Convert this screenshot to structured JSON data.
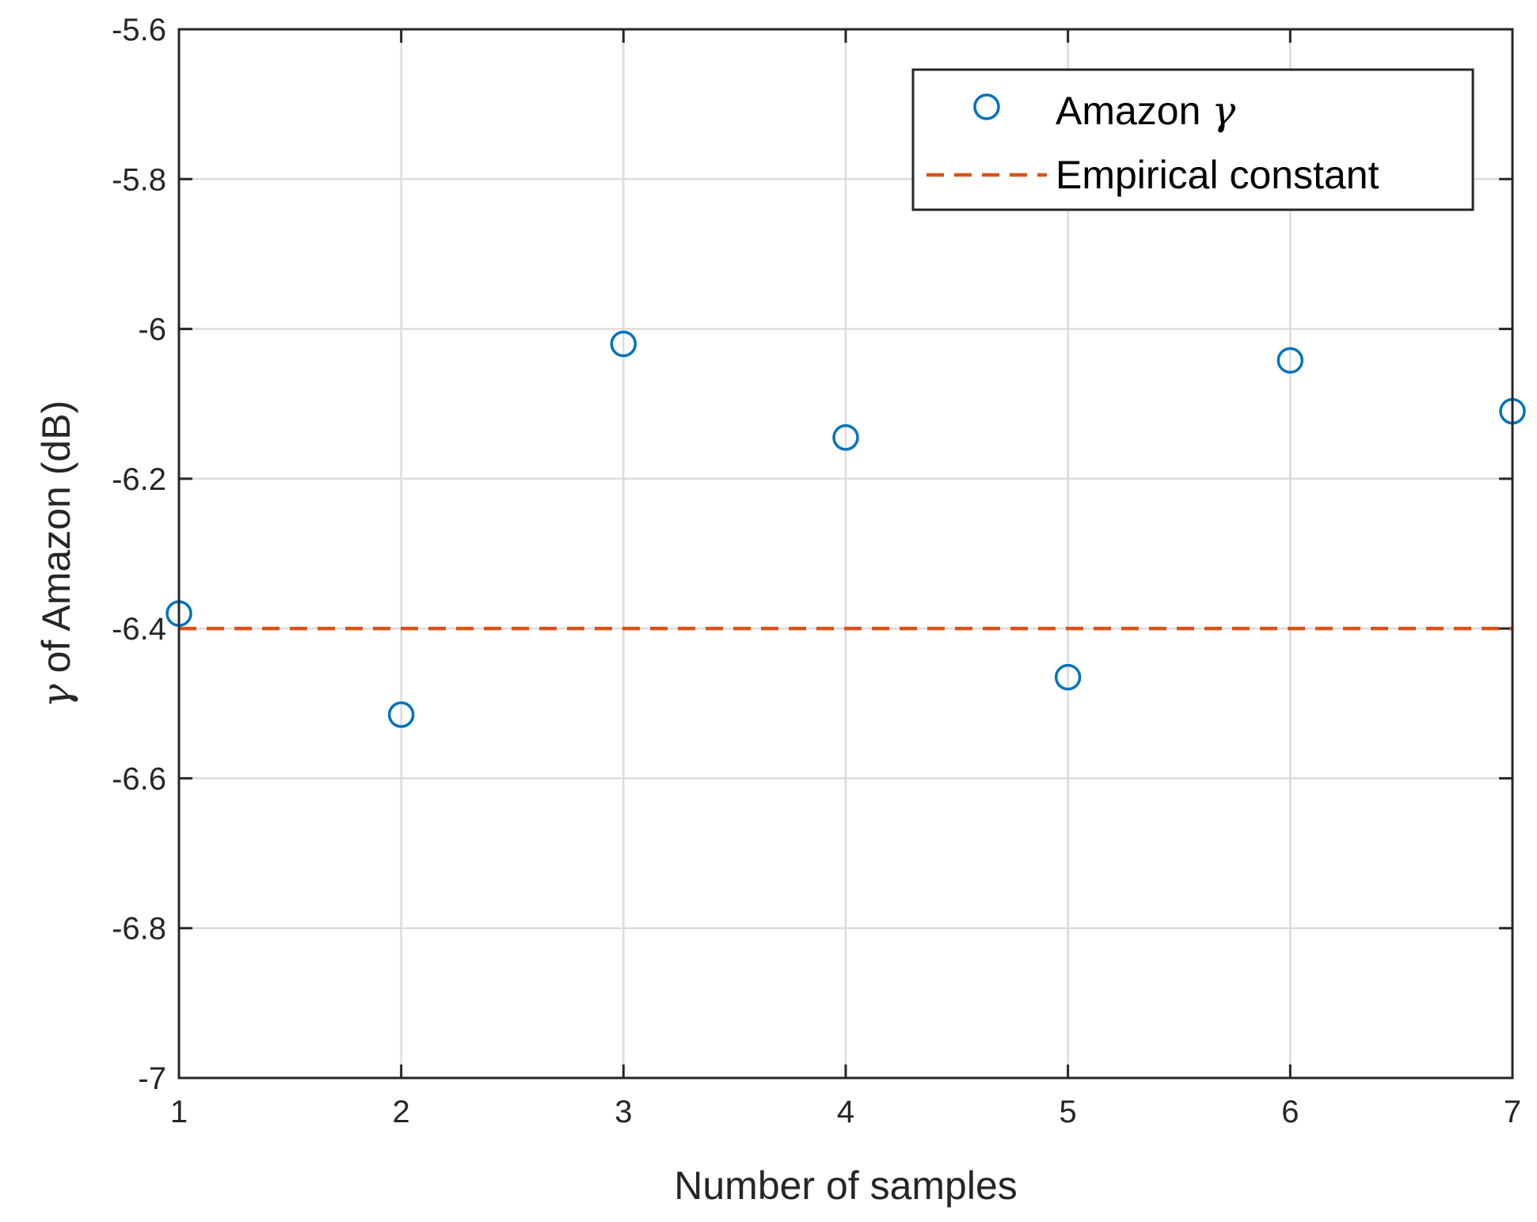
{
  "chart_data": {
    "type": "scatter",
    "title": "",
    "xlabel": "Number of samples",
    "ylabel_gamma": "γ",
    "ylabel_rest": " of Amazon (dB)",
    "xlim": [
      1,
      7
    ],
    "ylim": [
      -7,
      -5.6
    ],
    "grid": true,
    "x_ticks": [
      1,
      2,
      3,
      4,
      5,
      6,
      7
    ],
    "x_tick_labels": [
      "1",
      "2",
      "3",
      "4",
      "5",
      "6",
      "7"
    ],
    "y_ticks": [
      -7,
      -6.8,
      -6.6,
      -6.4,
      -6.2,
      -6,
      -5.8,
      -5.6
    ],
    "y_tick_labels": [
      "-7",
      "-6.8",
      "-6.6",
      "-6.4",
      "-6.2",
      "-6",
      "-5.8",
      "-5.6"
    ],
    "series": [
      {
        "name": "Amazon γ",
        "name_prefix": "Amazon ",
        "name_symbol": "γ",
        "marker": "circle",
        "color": "#0072BD",
        "x": [
          1,
          2,
          3,
          4,
          5,
          6,
          7
        ],
        "y": [
          -6.38,
          -6.515,
          -6.02,
          -6.145,
          -6.465,
          -6.042,
          -6.11
        ]
      },
      {
        "name": "Empirical constant",
        "style": "dashed-line",
        "color": "#D95319",
        "x": [
          1,
          7
        ],
        "y": [
          -6.4,
          -6.4
        ]
      }
    ],
    "legend_position": "top-right"
  }
}
